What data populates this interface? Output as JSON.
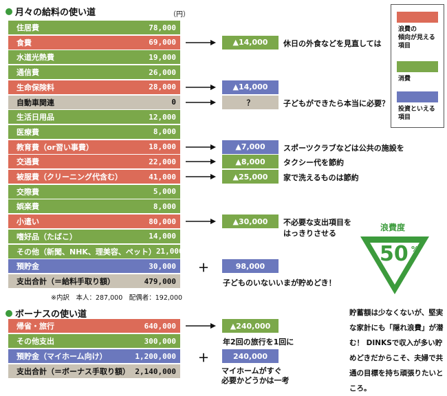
{
  "monthly": {
    "title": "月々の給料の使い道",
    "unit": "（円）",
    "rows": [
      {
        "label": "住居費",
        "amount": "78,000",
        "color": "green"
      },
      {
        "label": "食費",
        "amount": "69,000",
        "color": "red",
        "delta": "▲14,000",
        "delta_color": "green",
        "note": "休日の外食などを見直しては"
      },
      {
        "label": "水道光熱費",
        "amount": "19,000",
        "color": "green"
      },
      {
        "label": "通信費",
        "amount": "26,000",
        "color": "green"
      },
      {
        "label": "生命保険料",
        "amount": "28,000",
        "color": "red",
        "delta": "▲14,000",
        "delta_color": "blue"
      },
      {
        "label": "自動車関連",
        "amount": "0",
        "color": "gray",
        "delta": "？",
        "delta_color": "gray",
        "note": "子どもができたら本当に必要？"
      },
      {
        "label": "生活日用品",
        "amount": "12,000",
        "color": "green"
      },
      {
        "label": "医療費",
        "amount": "8,000",
        "color": "green"
      },
      {
        "label": "教育費（or習い事費）",
        "amount": "18,000",
        "color": "red",
        "delta": "▲7,000",
        "delta_color": "blue",
        "note": "スポーツクラブなどは公共の施設を"
      },
      {
        "label": "交通費",
        "amount": "22,000",
        "color": "red",
        "delta": "▲8,000",
        "delta_color": "green",
        "note": "タクシー代を節約"
      },
      {
        "label": "被服費（クリーニング代含む）",
        "amount": "41,000",
        "color": "red",
        "delta": "▲25,000",
        "delta_color": "green",
        "note": "家で洗えるものは節約"
      },
      {
        "label": "交際費",
        "amount": "5,000",
        "color": "green"
      },
      {
        "label": "娯楽費",
        "amount": "8,000",
        "color": "green"
      },
      {
        "label": "小遣い",
        "amount": "80,000",
        "color": "red",
        "delta": "▲30,000",
        "delta_color": "green",
        "note": "不必要な支出項目を\nはっきりさせる"
      },
      {
        "label": "嗜好品（たばこ）",
        "amount": "14,000",
        "color": "green"
      },
      {
        "label": "その他（新聞、NHK、理美容、ペット）",
        "amount": "21,000",
        "color": "green"
      },
      {
        "label": "預貯金",
        "amount": "30,000",
        "color": "blue",
        "plus": "＋",
        "delta": "98,000",
        "delta_color": "blue"
      }
    ],
    "total": {
      "label": "支出合計（＝給料手取り額）",
      "amount": "479,000",
      "note": "子どものいないいまが貯めどき！"
    },
    "footnote": "※内訳　本人：287,000　配偶者：192,000"
  },
  "bonus": {
    "title": "ボーナスの使い道",
    "rows": [
      {
        "label": "帰省・旅行",
        "amount": "640,000",
        "color": "red",
        "delta": "▲240,000",
        "delta_color": "green"
      },
      {
        "label": "その他支出",
        "amount": "300,000",
        "color": "green",
        "note": "年2回の旅行を1回に"
      },
      {
        "label": "預貯金（マイホーム向け）",
        "amount": "1,200,000",
        "color": "blue",
        "plus": "＋",
        "delta": "240,000",
        "delta_color": "blue"
      }
    ],
    "total": {
      "label": "支出合計（＝ボーナス手取り額）",
      "amount": "2,140,000",
      "note": "マイホームがすぐ\n必要かどうかは一考"
    }
  },
  "legend": [
    {
      "label": "浪費の\n傾向が見える\n項目",
      "color": "#dc6b58"
    },
    {
      "label": "消費",
      "color": "#7ba84a"
    },
    {
      "label": "投資といえる\n項目",
      "color": "#6b78bd"
    }
  ],
  "waste": {
    "label": "浪費度",
    "value": "50",
    "unit": "%"
  },
  "comment": "貯蓄額は少なくないが、堅実な家計にも「隠れ浪費」が潜む！ DINKSで収入が多い貯めどきだからこそ、夫婦で共通の目標を持ち頑張りたいところ。",
  "colors": {
    "green": "#7ba84a",
    "red": "#dc6b58",
    "blue": "#6b78bd",
    "gray": "#c9c2b4",
    "accent": "#3c9b3c"
  }
}
